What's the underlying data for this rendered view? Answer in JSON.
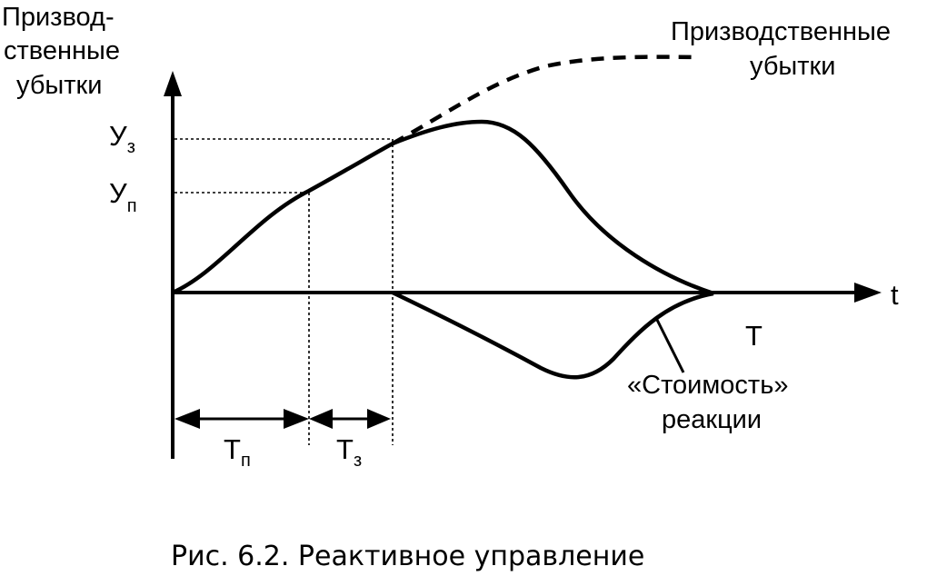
{
  "y_axis_label": [
    "Призвод-",
    "ственные",
    "убытки"
  ],
  "curve_label": [
    "Призводственные",
    "убытки"
  ],
  "x_axis_label": "t",
  "levels": {
    "u_z": {
      "main": "У",
      "sub": "з"
    },
    "u_p": {
      "main": "У",
      "sub": "п"
    }
  },
  "intervals": {
    "t_p": {
      "main": "Т",
      "sub": "п"
    },
    "t_z": {
      "main": "Т",
      "sub": "з"
    }
  },
  "t_end_label": "Т",
  "cost_label": [
    "«Стоимость»",
    "реакции"
  ],
  "caption": "Рис. 6.2. Реактивное управление",
  "colors": {
    "ink": "#000000",
    "background": "#ffffff"
  }
}
